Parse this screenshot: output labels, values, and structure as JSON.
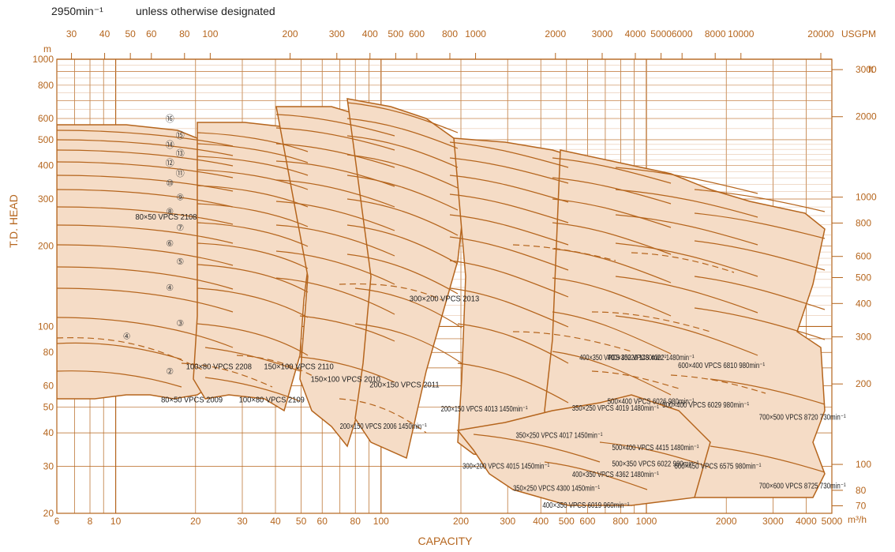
{
  "header": {
    "speed": "2950min⁻¹",
    "note": "unless otherwise designated"
  },
  "chart_data": {
    "type": "area",
    "title": "",
    "xlabel": "CAPACITY",
    "ylabel": "T.D. HEAD",
    "x_unit": "m³/h",
    "y_unit": "m",
    "top_unit": "USGPM",
    "right_unit": "ft",
    "x_scale": "log",
    "y_scale": "log",
    "xlim": [
      6,
      5000
    ],
    "ylim": [
      20,
      1000
    ],
    "grid": true,
    "x_ticks": [
      {
        "v": 6,
        "label": "6"
      },
      {
        "v": 8,
        "label": "8"
      },
      {
        "v": 10,
        "label": "10"
      },
      {
        "v": 20,
        "label": "20"
      },
      {
        "v": 30,
        "label": "30"
      },
      {
        "v": 40,
        "label": "40"
      },
      {
        "v": 50,
        "label": "50"
      },
      {
        "v": 60,
        "label": "60"
      },
      {
        "v": 80,
        "label": "80"
      },
      {
        "v": 100,
        "label": "100"
      },
      {
        "v": 200,
        "label": "200"
      },
      {
        "v": 300,
        "label": "300"
      },
      {
        "v": 400,
        "label": "400"
      },
      {
        "v": 500,
        "label": "500"
      },
      {
        "v": 600,
        "label": "600"
      },
      {
        "v": 800,
        "label": "800"
      },
      {
        "v": 1000,
        "label": "1000"
      },
      {
        "v": 2000,
        "label": "2000"
      },
      {
        "v": 3000,
        "label": "3000"
      },
      {
        "v": 4000,
        "label": "4000"
      },
      {
        "v": 5000,
        "label": "5000"
      }
    ],
    "y_ticks": [
      {
        "v": 20,
        "label": "20"
      },
      {
        "v": 30,
        "label": "30"
      },
      {
        "v": 40,
        "label": "40"
      },
      {
        "v": 50,
        "label": "50"
      },
      {
        "v": 60,
        "label": "60"
      },
      {
        "v": 80,
        "label": "80"
      },
      {
        "v": 100,
        "label": "100"
      },
      {
        "v": 200,
        "label": "200"
      },
      {
        "v": 300,
        "label": "300"
      },
      {
        "v": 400,
        "label": "400"
      },
      {
        "v": 500,
        "label": "500"
      },
      {
        "v": 600,
        "label": "600"
      },
      {
        "v": 800,
        "label": "800"
      },
      {
        "v": 1000,
        "label": "1000"
      }
    ],
    "top_ticks": [
      {
        "v": 30,
        "label": "30"
      },
      {
        "v": 40,
        "label": "40"
      },
      {
        "v": 50,
        "label": "50"
      },
      {
        "v": 60,
        "label": "60"
      },
      {
        "v": 80,
        "label": "80"
      },
      {
        "v": 100,
        "label": "100"
      },
      {
        "v": 200,
        "label": "200"
      },
      {
        "v": 300,
        "label": "300"
      },
      {
        "v": 400,
        "label": "400"
      },
      {
        "v": 500,
        "label": "500"
      },
      {
        "v": 600,
        "label": "600"
      },
      {
        "v": 800,
        "label": "800"
      },
      {
        "v": 1000,
        "label": "1000"
      },
      {
        "v": 2000,
        "label": "2000"
      },
      {
        "v": 3000,
        "label": "3000"
      },
      {
        "v": 4000,
        "label": "4000"
      },
      {
        "v": 5000,
        "label": "5000"
      },
      {
        "v": 6000,
        "label": "6000"
      },
      {
        "v": 8000,
        "label": "8000"
      },
      {
        "v": 10000,
        "label": "10000"
      },
      {
        "v": 20000,
        "label": "20000"
      }
    ],
    "right_ticks": [
      {
        "v": 70,
        "label": "70"
      },
      {
        "v": 80,
        "label": "80"
      },
      {
        "v": 100,
        "label": "100"
      },
      {
        "v": 200,
        "label": "200"
      },
      {
        "v": 300,
        "label": "300"
      },
      {
        "v": 400,
        "label": "400"
      },
      {
        "v": 500,
        "label": "500"
      },
      {
        "v": 600,
        "label": "600"
      },
      {
        "v": 800,
        "label": "800"
      },
      {
        "v": 1000,
        "label": "1000"
      },
      {
        "v": 2000,
        "label": "2000"
      },
      {
        "v": 3000,
        "label": "3000"
      }
    ],
    "colors": {
      "line": "#b5651d",
      "fill": "#f5dcc6",
      "grid": "#b5651d",
      "text": "#222222"
    },
    "series": [
      {
        "name": "80×50 VPCS 2108",
        "x": [
          6,
          20,
          40
        ],
        "y": [
          350,
          290,
          180
        ],
        "stages": [
          {
            "label": "⑯",
            "x": 16,
            "y": 600
          },
          {
            "label": "⑮",
            "x": 17.5,
            "y": 520
          },
          {
            "label": "⑭",
            "x": 16,
            "y": 480
          },
          {
            "label": "⑬",
            "x": 17.5,
            "y": 445
          },
          {
            "label": "⑫",
            "x": 16,
            "y": 410
          },
          {
            "label": "⑪",
            "x": 17.5,
            "y": 375
          },
          {
            "label": "⑩",
            "x": 16,
            "y": 345
          },
          {
            "label": "⑨",
            "x": 17.5,
            "y": 305
          },
          {
            "label": "⑧",
            "x": 16,
            "y": 270
          },
          {
            "label": "⑦",
            "x": 17.5,
            "y": 235
          },
          {
            "label": "⑥",
            "x": 16,
            "y": 205
          },
          {
            "label": "⑤",
            "x": 17.5,
            "y": 175
          },
          {
            "label": "④",
            "x": 16,
            "y": 140
          },
          {
            "label": "③",
            "x": 17.5,
            "y": 103
          },
          {
            "label": "④",
            "x": 11,
            "y": 92
          },
          {
            "label": "②",
            "x": 16,
            "y": 68
          }
        ]
      },
      {
        "name": "100×80 VPCS 2208",
        "x": [
          20,
          30
        ],
        "y": [
          80,
          60
        ]
      },
      {
        "name": "80×50 VPCS 2009",
        "x": [
          15,
          25
        ],
        "y": [
          60,
          45
        ]
      },
      {
        "name": "150×100 VPCS 2110",
        "x": [
          40,
          60
        ],
        "y": [
          80,
          60
        ]
      },
      {
        "name": "100×80 VPCS 2109",
        "x": [
          30,
          50
        ],
        "y": [
          60,
          45
        ]
      },
      {
        "name": "150×100 VPCS 2010",
        "x": [
          60,
          90
        ],
        "y": [
          70,
          55
        ]
      },
      {
        "name": "200×150 VPCS 2011",
        "x": [
          100,
          150
        ],
        "y": [
          70,
          50
        ]
      },
      {
        "name": "300×200 VPCS 2013",
        "x": [
          150,
          200
        ],
        "y": [
          140,
          110
        ]
      },
      {
        "name": "200×150 VPCS 2006 1450min⁻¹",
        "x": [
          80,
          130
        ],
        "y": [
          45,
          38
        ]
      },
      {
        "name": "200×150 VPCS 4013 1450min⁻¹",
        "x": [
          200,
          300
        ],
        "y": [
          55,
          42
        ]
      },
      {
        "name": "350×250 VPCS 4017 1450min⁻¹",
        "x": [
          400,
          550
        ],
        "y": [
          42,
          35
        ]
      },
      {
        "name": "300×200 VPCS 4015 1450min⁻¹",
        "x": [
          250,
          350
        ],
        "y": [
          32,
          27
        ]
      },
      {
        "name": "350×250 VPCS 4300 1450min⁻¹",
        "x": [
          420,
          500
        ],
        "y": [
          28,
          21
        ]
      },
      {
        "name": "400×350 VPCS 6019 960min⁻¹",
        "x": [
          500,
          700
        ],
        "y": [
          22,
          20
        ]
      },
      {
        "name": "400×350 VPCS 4362 1480min⁻¹",
        "x": [
          650,
          900
        ],
        "y": [
          30,
          25
        ]
      },
      {
        "name": "350×250 VPCS 4019 1480min⁻¹",
        "x": [
          650,
          900
        ],
        "y": [
          52,
          45
        ]
      },
      {
        "name": "400×350 VPCS 40220 1480min⁻¹",
        "x": [
          700,
          950
        ],
        "y": [
          80,
          70
        ]
      },
      {
        "name": "400×350 VPCS 4022 1480min⁻¹",
        "x": [
          900,
          1200
        ],
        "y": [
          80,
          70
        ]
      },
      {
        "name": "500×400 VPCS 6026 980min⁻¹",
        "x": [
          900,
          1200
        ],
        "y": [
          55,
          48
        ]
      },
      {
        "name": "500×400 VPCS 4415 1480min⁻¹",
        "x": [
          900,
          1300
        ],
        "y": [
          37,
          32
        ]
      },
      {
        "name": "500×350 VPCS 6022 980min⁻¹",
        "x": [
          900,
          1300
        ],
        "y": [
          32,
          28
        ]
      },
      {
        "name": "600×400 VPCS 6810 980min⁻¹",
        "x": [
          1600,
          2300
        ],
        "y": [
          75,
          65
        ]
      },
      {
        "name": "500×400 VPCS 6029 980min⁻¹",
        "x": [
          1400,
          2000
        ],
        "y": [
          55,
          45
        ]
      },
      {
        "name": "700×500 VPCS 8720 730min⁻¹",
        "x": [
          3000,
          5000
        ],
        "y": [
          50,
          40
        ]
      },
      {
        "name": "600×450 VPCS 6575 980min⁻¹",
        "x": [
          1500,
          2300
        ],
        "y": [
          32,
          27
        ]
      },
      {
        "name": "700×600 VPCS 8725 730min⁻¹",
        "x": [
          3000,
          5000
        ],
        "y": [
          28,
          22
        ]
      }
    ]
  }
}
